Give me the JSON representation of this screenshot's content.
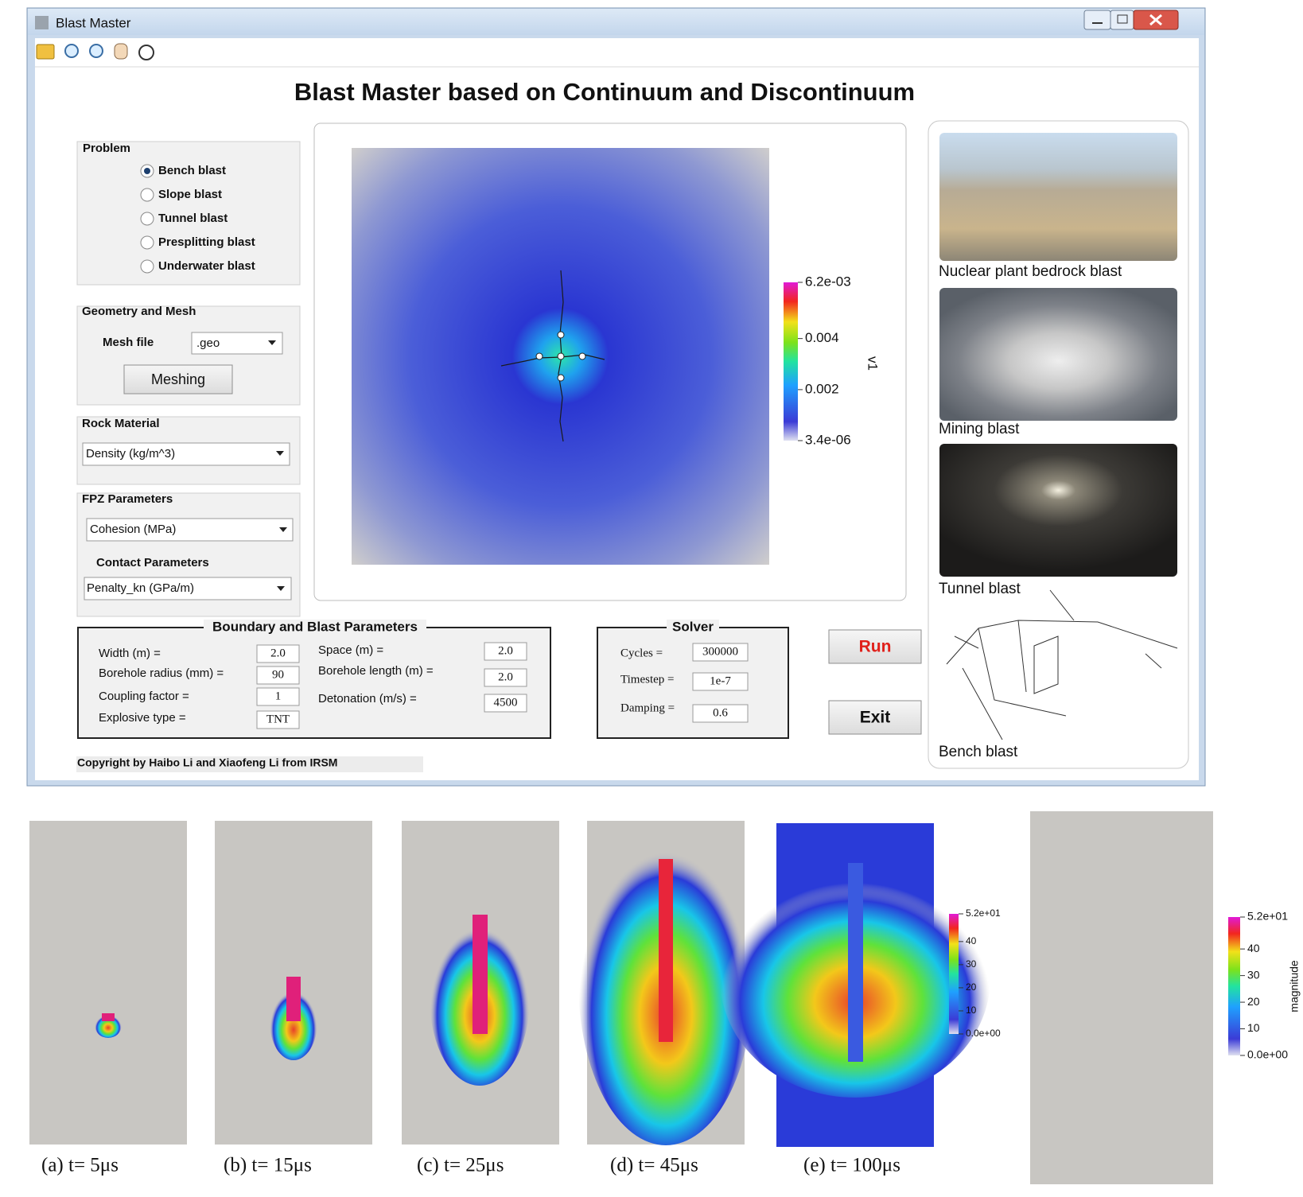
{
  "window": {
    "title": "Blast Master"
  },
  "header": {
    "title": "Blast Master based on Continuum and Discontinuum"
  },
  "problem": {
    "label": "Problem",
    "options": [
      "Bench blast",
      "Slope blast",
      "Tunnel blast",
      "Presplitting blast",
      "Underwater blast"
    ]
  },
  "geometry": {
    "label": "Geometry and Mesh",
    "mesh_file_label": "Mesh file",
    "mesh_file": ".geo",
    "button": "Meshing"
  },
  "rock": {
    "label": "Rock Material",
    "select": "Density (kg/m^3)"
  },
  "fpz": {
    "label": "FPZ Parameters",
    "select": "Cohesion (MPa)",
    "contact_label": "Contact Parameters",
    "contact_select": "Penalty_kn (GPa/m)"
  },
  "boundary": {
    "label": "Boundary and Blast Parameters",
    "left": [
      {
        "label": "Width (m) =",
        "value": "2.0"
      },
      {
        "label": "Borehole radius (mm) =",
        "value": 90
      },
      {
        "label": "Coupling factor =",
        "value": 1
      },
      {
        "label": "Explosive type =",
        "value": "TNT"
      }
    ],
    "right": [
      {
        "label": "Space (m) =",
        "value": "2.0"
      },
      {
        "label": "Borehole length (m) =",
        "value": "2.0"
      },
      {
        "label": "Detonation (m/s) =",
        "value": 4500
      }
    ]
  },
  "solver": {
    "label": "Solver",
    "fields": [
      {
        "label": "Cycles =",
        "value": 300000
      },
      {
        "label": "Timestep =",
        "value": "1e-7"
      },
      {
        "label": "Damping =",
        "value": 0.6
      }
    ]
  },
  "buttons": {
    "run": "Run",
    "exit": "Exit"
  },
  "copyright": "Copyright by Haibo Li and Xiaofeng Li from IRSM",
  "plot": {
    "colorbar": {
      "label": "v1",
      "lim": [
        3.4e-06,
        0.0062
      ],
      "ticks": [
        {
          "value": 0.0062,
          "label": "6.2e-03"
        },
        0.004,
        0.002,
        {
          "value": 3.4e-06,
          "label": "3.4e-06"
        }
      ]
    }
  },
  "gallery": [
    {
      "caption": "Nuclear plant bedrock blast"
    },
    {
      "caption": "Mining blast"
    },
    {
      "caption": "Tunnel blast"
    },
    {
      "caption": "Bench blast"
    }
  ],
  "snapshots": {
    "captions": [
      "(a) t= 5μs",
      "(b) t= 15μs",
      "(c) t= 25μs",
      "(d) t= 45μs",
      "(e) t= 100μs"
    ],
    "colorbar": {
      "label": "magnitude",
      "lim": [
        0,
        52
      ],
      "ticks": [
        {
          "value": 52,
          "label": "5.2e+01"
        },
        40,
        30,
        20,
        10,
        {
          "value": 0,
          "label": "0.0e+00"
        }
      ]
    }
  }
}
